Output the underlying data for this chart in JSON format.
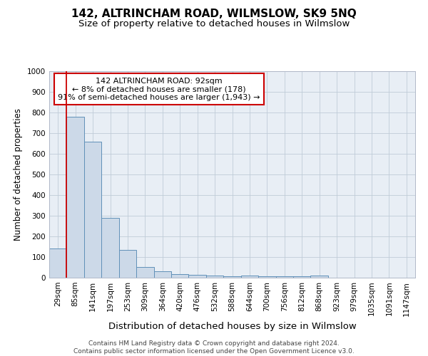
{
  "title": "142, ALTRINCHAM ROAD, WILMSLOW, SK9 5NQ",
  "subtitle": "Size of property relative to detached houses in Wilmslow",
  "xlabel": "Distribution of detached houses by size in Wilmslow",
  "ylabel": "Number of detached properties",
  "categories": [
    "29sqm",
    "85sqm",
    "141sqm",
    "197sqm",
    "253sqm",
    "309sqm",
    "364sqm",
    "420sqm",
    "476sqm",
    "532sqm",
    "588sqm",
    "644sqm",
    "700sqm",
    "756sqm",
    "812sqm",
    "868sqm",
    "923sqm",
    "979sqm",
    "1035sqm",
    "1091sqm",
    "1147sqm"
  ],
  "values": [
    140,
    778,
    660,
    290,
    136,
    53,
    30,
    18,
    15,
    10,
    7,
    10,
    8,
    7,
    7,
    10,
    0,
    0,
    0,
    0,
    0
  ],
  "bar_color": "#ccd9e8",
  "bar_edge_color": "#6090b8",
  "bar_edge_width": 0.7,
  "vline_color": "#cc0000",
  "annotation_text": "142 ALTRINCHAM ROAD: 92sqm\n← 8% of detached houses are smaller (178)\n91% of semi-detached houses are larger (1,943) →",
  "annotation_box_color": "#ffffff",
  "annotation_box_edge_color": "#cc0000",
  "ylim": [
    0,
    1000
  ],
  "yticks": [
    0,
    100,
    200,
    300,
    400,
    500,
    600,
    700,
    800,
    900,
    1000
  ],
  "footnote": "Contains HM Land Registry data © Crown copyright and database right 2024.\nContains public sector information licensed under the Open Government Licence v3.0.",
  "background_color": "#ffffff",
  "plot_bg_color": "#e8eef5",
  "grid_color": "#c0ccd8",
  "title_fontsize": 11,
  "subtitle_fontsize": 9.5,
  "xlabel_fontsize": 9.5,
  "ylabel_fontsize": 8.5,
  "tick_fontsize": 7.5,
  "annotation_fontsize": 8,
  "footnote_fontsize": 6.5
}
